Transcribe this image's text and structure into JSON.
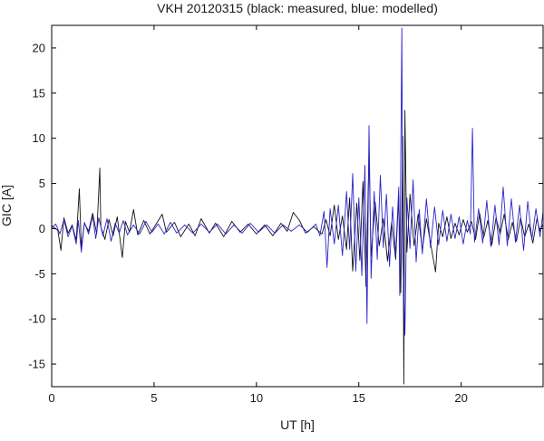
{
  "chart_data": {
    "type": "line",
    "title": "VKH 20120315 (black: measured, blue: modelled)",
    "xlabel": "UT [h]",
    "ylabel": "GIC [A]",
    "xlim": [
      0,
      24
    ],
    "ylim": [
      -17.5,
      22.5
    ],
    "xticks": [
      0,
      5,
      10,
      15,
      20
    ],
    "yticks": [
      -15,
      -10,
      -5,
      0,
      5,
      10,
      15,
      20
    ],
    "grid": false,
    "legend": "none",
    "colors": {
      "measured": "#111111",
      "modelled": "#2d24cc",
      "axis": "#000000"
    },
    "series": [
      {
        "key": "measured",
        "values": [
          [
            0,
            0.3
          ],
          [
            0.3,
            -0.2
          ],
          [
            0.45,
            -2.4
          ],
          [
            0.6,
            1.2
          ],
          [
            0.8,
            -0.5
          ],
          [
            1.0,
            0.4
          ],
          [
            1.2,
            -1.3
          ],
          [
            1.35,
            4.4
          ],
          [
            1.45,
            -2.1
          ],
          [
            1.6,
            0.6
          ],
          [
            1.8,
            -0.3
          ],
          [
            2.0,
            1.7
          ],
          [
            2.2,
            -0.6
          ],
          [
            2.35,
            6.7
          ],
          [
            2.4,
            0.2
          ],
          [
            2.6,
            -1.2
          ],
          [
            2.8,
            1.0
          ],
          [
            3.0,
            -0.8
          ],
          [
            3.2,
            1.3
          ],
          [
            3.45,
            -3.2
          ],
          [
            3.6,
            0.8
          ],
          [
            3.8,
            -0.4
          ],
          [
            4.0,
            2.1
          ],
          [
            4.2,
            -0.7
          ],
          [
            4.5,
            0.9
          ],
          [
            4.8,
            -0.6
          ],
          [
            5.1,
            0.5
          ],
          [
            5.4,
            1.6
          ],
          [
            5.6,
            -0.4
          ],
          [
            6.0,
            0.7
          ],
          [
            6.3,
            -0.9
          ],
          [
            6.7,
            0.5
          ],
          [
            7.0,
            -0.8
          ],
          [
            7.3,
            1.1
          ],
          [
            7.7,
            -0.5
          ],
          [
            8.0,
            0.6
          ],
          [
            8.4,
            -0.9
          ],
          [
            8.8,
            0.8
          ],
          [
            9.2,
            -0.4
          ],
          [
            9.6,
            0.5
          ],
          [
            10.0,
            -0.6
          ],
          [
            10.4,
            0.4
          ],
          [
            10.8,
            -0.8
          ],
          [
            11.2,
            0.6
          ],
          [
            11.5,
            -0.3
          ],
          [
            11.8,
            1.8
          ],
          [
            12.1,
            0.9
          ],
          [
            12.4,
            -0.5
          ],
          [
            12.8,
            0.2
          ],
          [
            13.2,
            -0.6
          ],
          [
            13.4,
            1.0
          ],
          [
            13.6,
            -0.8
          ],
          [
            13.8,
            2.6
          ],
          [
            14.0,
            -1.2
          ],
          [
            14.2,
            1.4
          ],
          [
            14.4,
            -2.3
          ],
          [
            14.55,
            3.4
          ],
          [
            14.7,
            -4.7
          ],
          [
            14.9,
            2.8
          ],
          [
            15.05,
            -3.5
          ],
          [
            15.2,
            5.2
          ],
          [
            15.35,
            -6.4
          ],
          [
            15.5,
            8.4
          ],
          [
            15.6,
            -3.1
          ],
          [
            15.8,
            2.9
          ],
          [
            16.0,
            -1.9
          ],
          [
            16.2,
            1.1
          ],
          [
            16.4,
            -3.6
          ],
          [
            16.6,
            0.7
          ],
          [
            16.8,
            -3.4
          ],
          [
            16.95,
            3.7
          ],
          [
            17.05,
            -7.1
          ],
          [
            17.15,
            10.2
          ],
          [
            17.2,
            -17.2
          ],
          [
            17.25,
            13.1
          ],
          [
            17.35,
            -2.6
          ],
          [
            17.5,
            3.8
          ],
          [
            17.7,
            -1.9
          ],
          [
            17.9,
            1.6
          ],
          [
            18.1,
            -2.4
          ],
          [
            18.3,
            1.1
          ],
          [
            18.5,
            -1.6
          ],
          [
            18.75,
            -4.8
          ],
          [
            18.9,
            0.6
          ],
          [
            19.1,
            -0.9
          ],
          [
            19.3,
            1.3
          ],
          [
            19.5,
            -1.1
          ],
          [
            19.7,
            0.6
          ],
          [
            19.9,
            -0.7
          ],
          [
            20.1,
            1.0
          ],
          [
            20.3,
            -0.4
          ],
          [
            20.5,
            0.8
          ],
          [
            20.7,
            -1.2
          ],
          [
            20.9,
            1.7
          ],
          [
            21.1,
            -1.0
          ],
          [
            21.3,
            0.9
          ],
          [
            21.5,
            -1.8
          ],
          [
            21.7,
            1.2
          ],
          [
            21.9,
            -0.6
          ],
          [
            22.1,
            1.6
          ],
          [
            22.3,
            -1.2
          ],
          [
            22.5,
            0.7
          ],
          [
            22.7,
            -1.4
          ],
          [
            22.9,
            1.2
          ],
          [
            23.1,
            -0.9
          ],
          [
            23.3,
            0.5
          ],
          [
            23.5,
            -1.6
          ],
          [
            23.7,
            1.1
          ],
          [
            23.85,
            -0.3
          ],
          [
            24,
            0.5
          ]
        ]
      },
      {
        "key": "modelled",
        "values": [
          [
            0,
            0.1
          ],
          [
            0.2,
            0.5
          ],
          [
            0.4,
            -0.6
          ],
          [
            0.6,
            1.0
          ],
          [
            0.8,
            -0.9
          ],
          [
            1.0,
            0.3
          ],
          [
            1.2,
            -1.7
          ],
          [
            1.3,
            0.9
          ],
          [
            1.45,
            -2.6
          ],
          [
            1.6,
            0.7
          ],
          [
            1.8,
            -0.6
          ],
          [
            2.0,
            1.4
          ],
          [
            2.15,
            -1.1
          ],
          [
            2.3,
            1.2
          ],
          [
            2.5,
            -0.8
          ],
          [
            2.7,
            1.1
          ],
          [
            2.9,
            -1.4
          ],
          [
            3.1,
            0.6
          ],
          [
            3.3,
            -0.5
          ],
          [
            3.5,
            0.9
          ],
          [
            3.7,
            -0.7
          ],
          [
            4.0,
            0.4
          ],
          [
            4.3,
            -0.6
          ],
          [
            4.6,
            0.8
          ],
          [
            4.9,
            -0.4
          ],
          [
            5.2,
            0.5
          ],
          [
            5.5,
            -0.6
          ],
          [
            5.8,
            0.7
          ],
          [
            6.1,
            -0.5
          ],
          [
            6.5,
            0.4
          ],
          [
            6.9,
            -0.5
          ],
          [
            7.3,
            0.5
          ],
          [
            7.7,
            -0.4
          ],
          [
            8.1,
            0.5
          ],
          [
            8.5,
            -0.6
          ],
          [
            8.9,
            0.4
          ],
          [
            9.3,
            -0.5
          ],
          [
            9.7,
            0.6
          ],
          [
            10.1,
            -0.4
          ],
          [
            10.5,
            0.4
          ],
          [
            10.9,
            -0.5
          ],
          [
            11.3,
            0.4
          ],
          [
            11.7,
            -0.3
          ],
          [
            12.1,
            0.4
          ],
          [
            12.5,
            -0.4
          ],
          [
            12.9,
            0.5
          ],
          [
            13.1,
            -0.8
          ],
          [
            13.3,
            1.9
          ],
          [
            13.45,
            -4.3
          ],
          [
            13.6,
            2.2
          ],
          [
            13.8,
            -1.7
          ],
          [
            14.0,
            2.6
          ],
          [
            14.2,
            -3.0
          ],
          [
            14.4,
            4.1
          ],
          [
            14.55,
            -2.3
          ],
          [
            14.7,
            6.1
          ],
          [
            14.85,
            -4.7
          ],
          [
            15.0,
            3.4
          ],
          [
            15.15,
            -5.2
          ],
          [
            15.3,
            7.0
          ],
          [
            15.4,
            -10.5
          ],
          [
            15.5,
            11.4
          ],
          [
            15.6,
            -5.5
          ],
          [
            15.75,
            4.1
          ],
          [
            15.9,
            -3.4
          ],
          [
            16.05,
            5.9
          ],
          [
            16.2,
            -2.1
          ],
          [
            16.35,
            3.8
          ],
          [
            16.5,
            -4.2
          ],
          [
            16.65,
            2.4
          ],
          [
            16.8,
            -2.9
          ],
          [
            16.95,
            4.6
          ],
          [
            17.0,
            -7.4
          ],
          [
            17.1,
            22.2
          ],
          [
            17.15,
            -3.1
          ],
          [
            17.25,
            -11.8
          ],
          [
            17.35,
            3.4
          ],
          [
            17.5,
            -2.2
          ],
          [
            17.65,
            5.4
          ],
          [
            17.8,
            -3.7
          ],
          [
            17.95,
            2.1
          ],
          [
            18.1,
            -2.8
          ],
          [
            18.3,
            3.3
          ],
          [
            18.5,
            -2.1
          ],
          [
            18.7,
            2.4
          ],
          [
            18.9,
            -1.8
          ],
          [
            19.1,
            2.0
          ],
          [
            19.3,
            -1.4
          ],
          [
            19.5,
            1.6
          ],
          [
            19.7,
            -1.1
          ],
          [
            19.9,
            1.3
          ],
          [
            20.1,
            -1.7
          ],
          [
            20.3,
            0.9
          ],
          [
            20.45,
            -0.6
          ],
          [
            20.55,
            11.1
          ],
          [
            20.65,
            -1.5
          ],
          [
            20.85,
            2.2
          ],
          [
            21.05,
            -1.6
          ],
          [
            21.25,
            3.1
          ],
          [
            21.45,
            -2.0
          ],
          [
            21.65,
            2.6
          ],
          [
            21.85,
            -1.8
          ],
          [
            22.05,
            4.6
          ],
          [
            22.25,
            -1.9
          ],
          [
            22.45,
            3.3
          ],
          [
            22.65,
            -1.5
          ],
          [
            22.85,
            2.6
          ],
          [
            23.05,
            -2.4
          ],
          [
            23.25,
            3.0
          ],
          [
            23.45,
            -1.2
          ],
          [
            23.65,
            2.2
          ],
          [
            23.85,
            -0.9
          ],
          [
            24,
            1.9
          ]
        ]
      }
    ]
  }
}
